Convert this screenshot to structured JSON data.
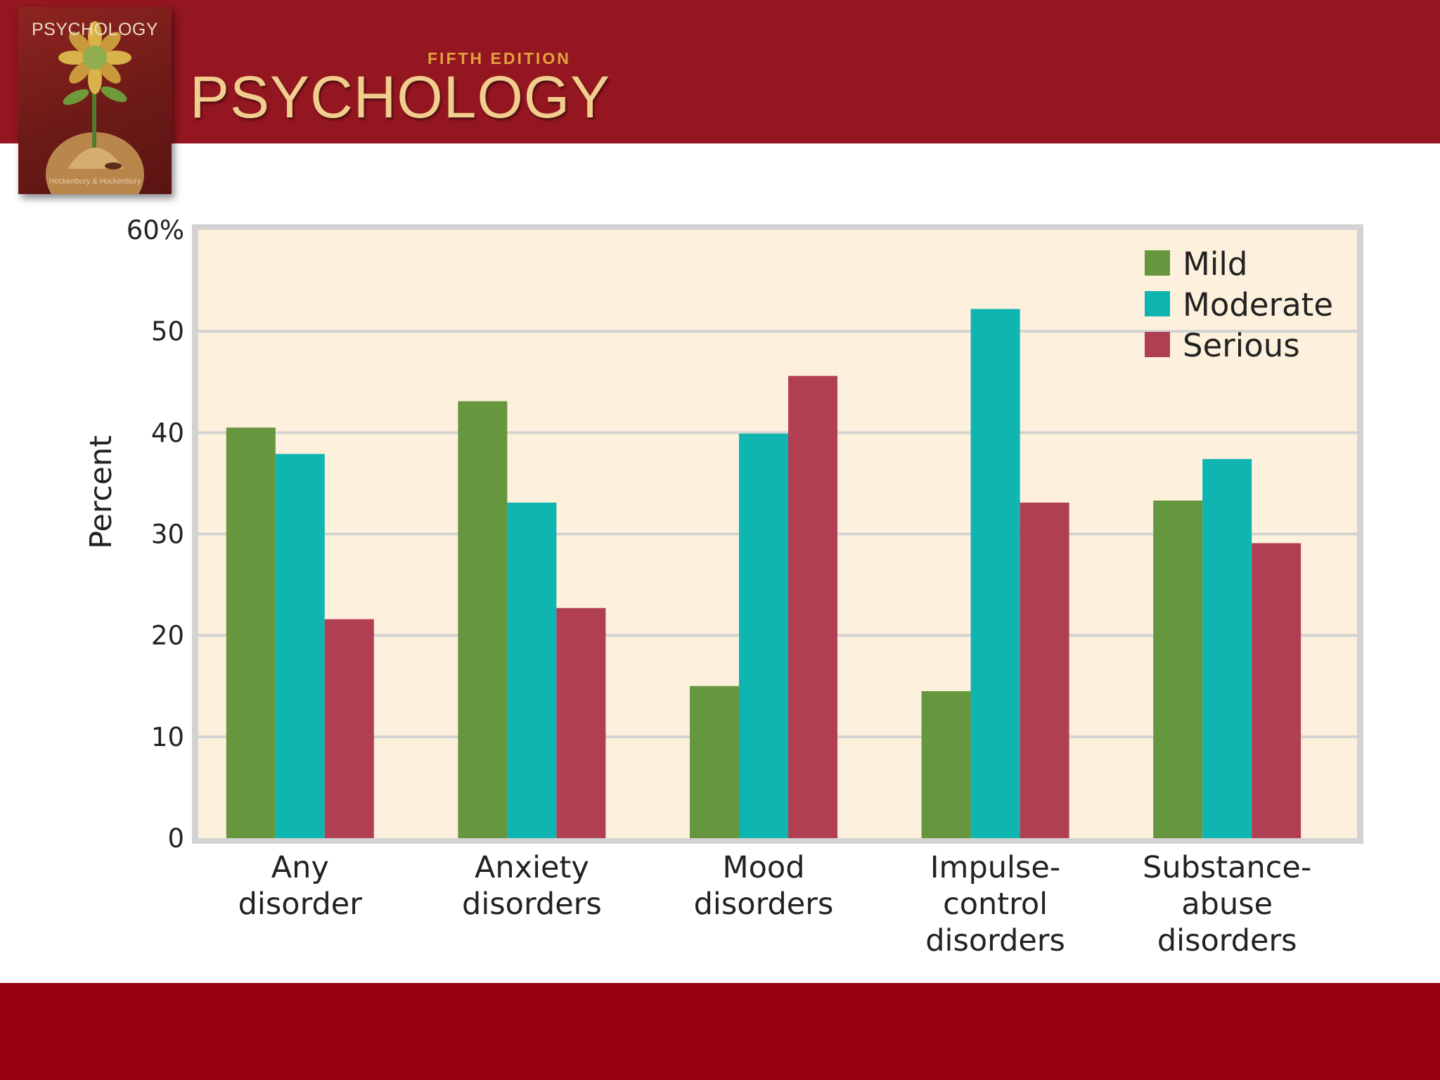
{
  "header": {
    "cover_title": "PSYCHOLOGY",
    "cover_authors": "Hockenbury & Hockenbury",
    "edition": "FIFTH EDITION",
    "title": "PSYCHOLOGY"
  },
  "colors": {
    "header_bg": "#931620",
    "footer_bg": "#990112",
    "plot_bg": "#fdf0dc",
    "mild": "#66963d",
    "moderate": "#0fb5b0",
    "serious": "#b13f54"
  },
  "chart_data": {
    "type": "bar",
    "title": "",
    "xlabel": "",
    "ylabel": "Percent",
    "ylim": [
      0,
      60
    ],
    "yticks": [
      0,
      10,
      20,
      30,
      40,
      50,
      60
    ],
    "ytick_labels": [
      "0",
      "10",
      "20",
      "30",
      "40",
      "50",
      "60%"
    ],
    "grid": true,
    "legend_position": "top-right",
    "categories": [
      [
        "Any",
        "disorder"
      ],
      [
        "Anxiety",
        "disorders"
      ],
      [
        "Mood",
        "disorders"
      ],
      [
        "Impulse-",
        "control",
        "disorders"
      ],
      [
        "Substance-",
        "abuse",
        "disorders"
      ]
    ],
    "series": [
      {
        "name": "Mild",
        "color": "#66963d",
        "values": [
          40.5,
          43.1,
          15.0,
          14.5,
          33.3
        ]
      },
      {
        "name": "Moderate",
        "color": "#0fb5b0",
        "values": [
          37.9,
          33.1,
          39.9,
          52.2,
          37.4
        ]
      },
      {
        "name": "Serious",
        "color": "#b13f54",
        "values": [
          21.6,
          22.7,
          45.6,
          33.1,
          29.1
        ]
      }
    ]
  }
}
